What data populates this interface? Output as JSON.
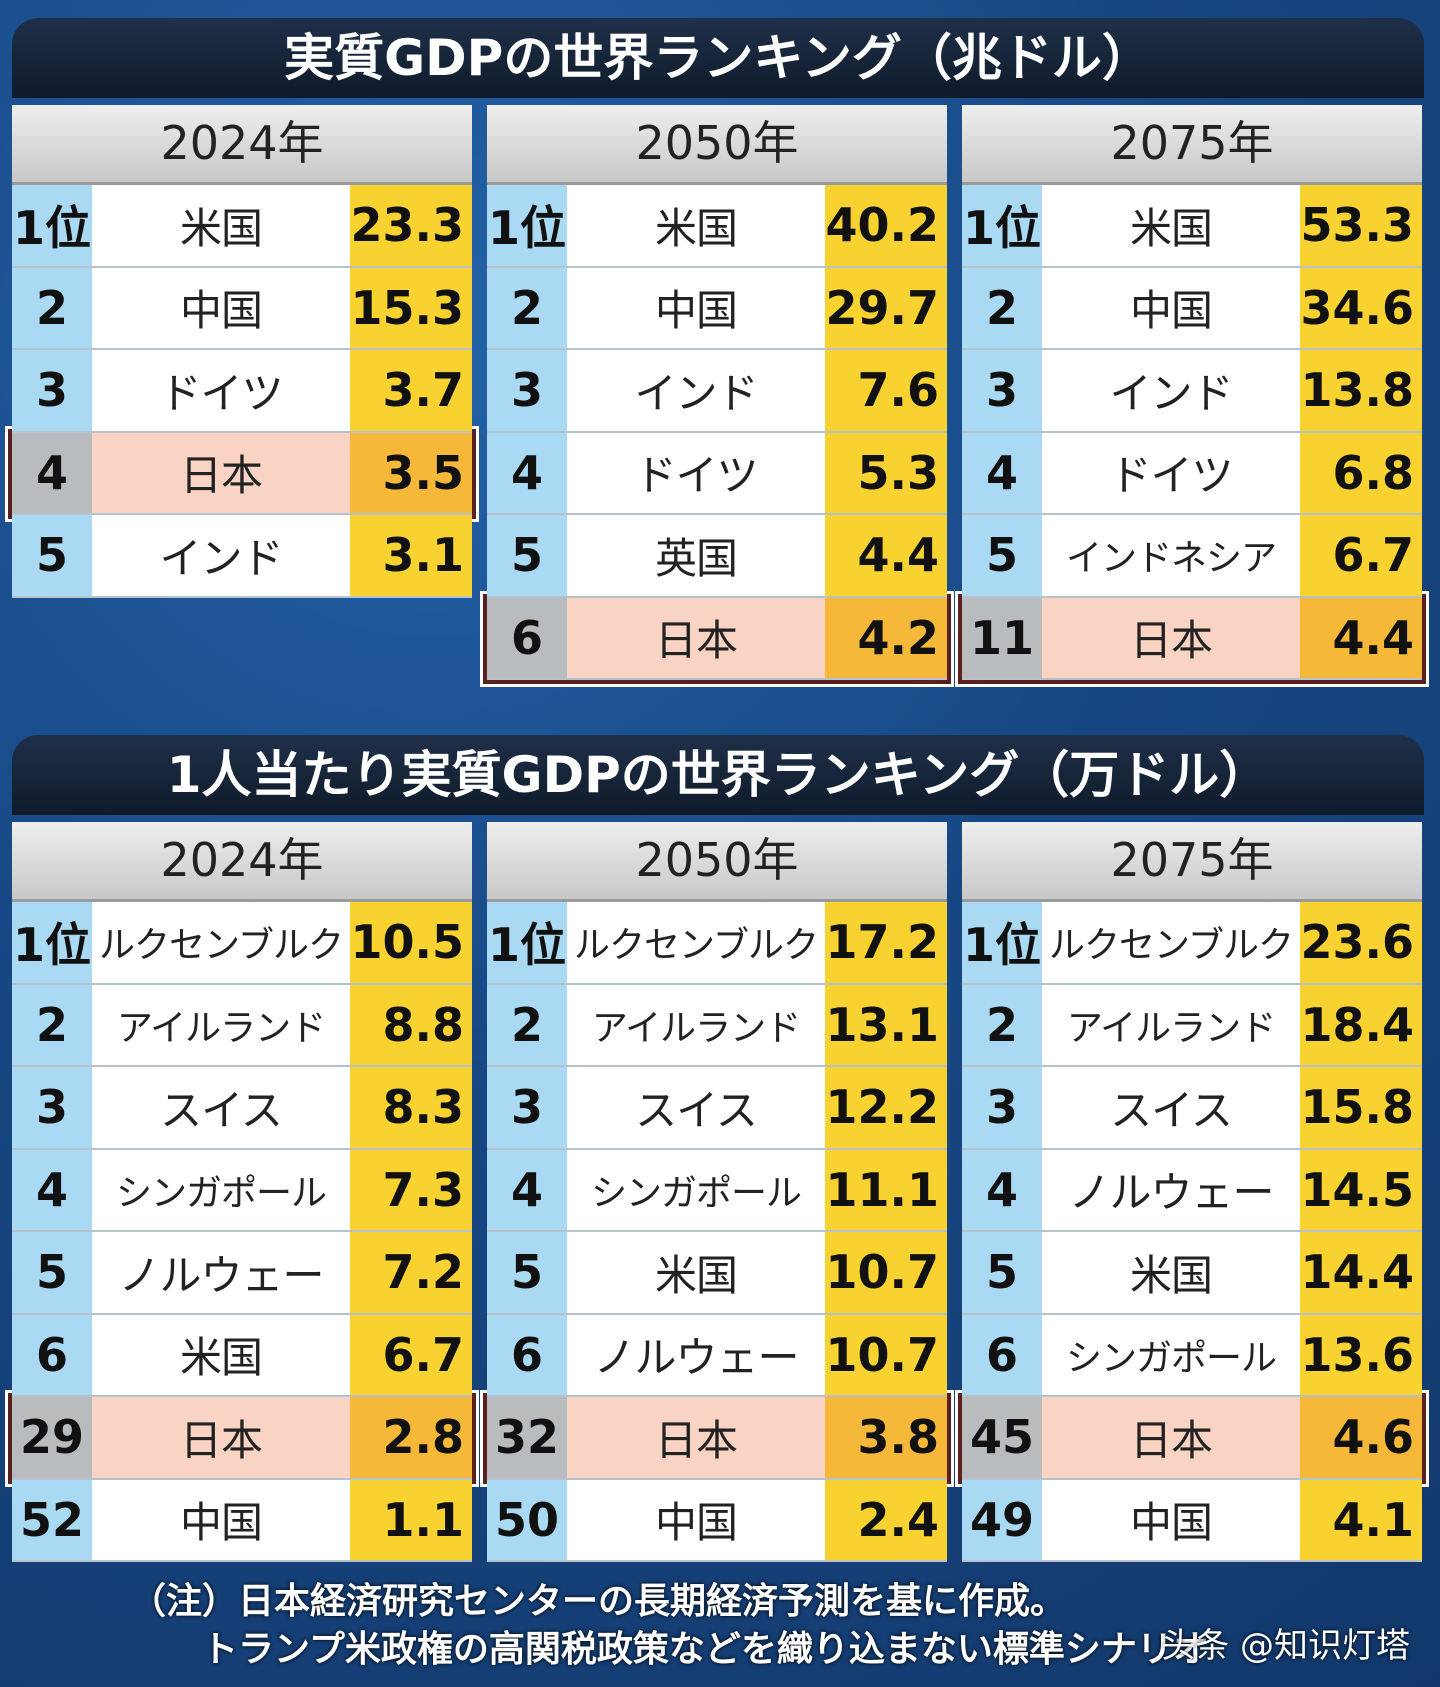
{
  "chart_data": [
    {
      "type": "table",
      "title": "実質GDPの世界ランキング（兆ドル）",
      "columns": [
        {
          "year": "2024年",
          "rows": [
            {
              "rank": "1位",
              "name": "米国",
              "value": "23.3"
            },
            {
              "rank": "2",
              "name": "中国",
              "value": "15.3"
            },
            {
              "rank": "3",
              "name": "ドイツ",
              "value": "3.7"
            },
            {
              "rank": "4",
              "name": "日本",
              "value": "3.5",
              "japan": true
            },
            {
              "rank": "5",
              "name": "インド",
              "value": "3.1"
            }
          ]
        },
        {
          "year": "2050年",
          "rows": [
            {
              "rank": "1位",
              "name": "米国",
              "value": "40.2"
            },
            {
              "rank": "2",
              "name": "中国",
              "value": "29.7"
            },
            {
              "rank": "3",
              "name": "インド",
              "value": "7.6"
            },
            {
              "rank": "4",
              "name": "ドイツ",
              "value": "5.3"
            },
            {
              "rank": "5",
              "name": "英国",
              "value": "4.4"
            },
            {
              "rank": "6",
              "name": "日本",
              "value": "4.2",
              "japan": true
            }
          ]
        },
        {
          "year": "2075年",
          "rows": [
            {
              "rank": "1位",
              "name": "米国",
              "value": "53.3"
            },
            {
              "rank": "2",
              "name": "中国",
              "value": "34.6"
            },
            {
              "rank": "3",
              "name": "インド",
              "value": "13.8"
            },
            {
              "rank": "4",
              "name": "ドイツ",
              "value": "6.8"
            },
            {
              "rank": "5",
              "name": "インドネシア",
              "value": "6.7"
            },
            {
              "rank": "11",
              "name": "日本",
              "value": "4.4",
              "japan": true
            }
          ]
        }
      ]
    },
    {
      "type": "table",
      "title": "1人当たり実質GDPの世界ランキング（万ドル）",
      "columns": [
        {
          "year": "2024年",
          "rows": [
            {
              "rank": "1位",
              "name": "ルクセンブルク",
              "value": "10.5"
            },
            {
              "rank": "2",
              "name": "アイルランド",
              "value": "8.8"
            },
            {
              "rank": "3",
              "name": "スイス",
              "value": "8.3"
            },
            {
              "rank": "4",
              "name": "シンガポール",
              "value": "7.3"
            },
            {
              "rank": "5",
              "name": "ノルウェー",
              "value": "7.2"
            },
            {
              "rank": "6",
              "name": "米国",
              "value": "6.7"
            },
            {
              "rank": "29",
              "name": "日本",
              "value": "2.8",
              "japan": true
            },
            {
              "rank": "52",
              "name": "中国",
              "value": "1.1"
            }
          ]
        },
        {
          "year": "2050年",
          "rows": [
            {
              "rank": "1位",
              "name": "ルクセンブルク",
              "value": "17.2"
            },
            {
              "rank": "2",
              "name": "アイルランド",
              "value": "13.1"
            },
            {
              "rank": "3",
              "name": "スイス",
              "value": "12.2"
            },
            {
              "rank": "4",
              "name": "シンガポール",
              "value": "11.1"
            },
            {
              "rank": "5",
              "name": "米国",
              "value": "10.7"
            },
            {
              "rank": "6",
              "name": "ノルウェー",
              "value": "10.7"
            },
            {
              "rank": "32",
              "name": "日本",
              "value": "3.8",
              "japan": true
            },
            {
              "rank": "50",
              "name": "中国",
              "value": "2.4"
            }
          ]
        },
        {
          "year": "2075年",
          "rows": [
            {
              "rank": "1位",
              "name": "ルクセンブルク",
              "value": "23.6"
            },
            {
              "rank": "2",
              "name": "アイルランド",
              "value": "18.4"
            },
            {
              "rank": "3",
              "name": "スイス",
              "value": "15.8"
            },
            {
              "rank": "4",
              "name": "ノルウェー",
              "value": "14.5"
            },
            {
              "rank": "5",
              "name": "米国",
              "value": "14.4"
            },
            {
              "rank": "6",
              "name": "シンガポール",
              "value": "13.6"
            },
            {
              "rank": "45",
              "name": "日本",
              "value": "4.6",
              "japan": true
            },
            {
              "rank": "49",
              "name": "中国",
              "value": "4.1"
            }
          ]
        }
      ]
    }
  ],
  "note": {
    "line1": "（注）日本経済研究センターの長期経済予測を基に作成。",
    "line2": "トランプ米政権の高関税政策などを織り込まない標準シナリオ"
  },
  "watermark": "头条 @知识灯塔",
  "colors": {
    "background": "#1a4d8c",
    "rank_cell": "#a9d9f3",
    "value_cell": "#f7d230",
    "japan_row": "#f9d3c3",
    "japan_border": "#5a2020"
  }
}
